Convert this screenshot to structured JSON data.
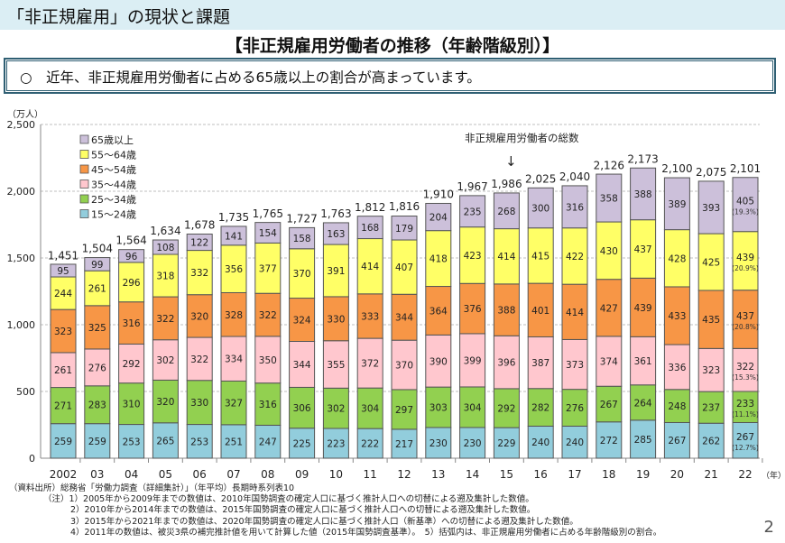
{
  "header": {
    "title": "「非正規雇用」の現状と課題"
  },
  "subtitle": "【非正規雇用労働者の推移（年齢階級別）】",
  "message": "○　近年、非正規雇用労働者に占める65歳以上の割合が高まっています。",
  "chart_data": {
    "type": "bar",
    "stacked": true,
    "ylabel": "（万人）",
    "xlabel": "（年）",
    "ylim": [
      0,
      2500
    ],
    "yticks": [
      "0",
      "500",
      "1,000",
      "1,500",
      "2,000",
      "2,500"
    ],
    "grid": true,
    "legend": "top-left",
    "annotation": "非正規雇用労働者の総数",
    "categories": [
      "2002",
      "03",
      "04",
      "05",
      "06",
      "07",
      "08",
      "09",
      "10",
      "11",
      "12",
      "13",
      "14",
      "15",
      "16",
      "17",
      "18",
      "19",
      "20",
      "21",
      "22"
    ],
    "totals": [
      1451,
      1504,
      1564,
      1634,
      1678,
      1735,
      1765,
      1727,
      1763,
      1812,
      1816,
      1910,
      1967,
      1986,
      2025,
      2040,
      2126,
      2173,
      2100,
      2075,
      2101
    ],
    "series": [
      {
        "name": "15～24歳",
        "color": "#92cddc",
        "values": [
          259,
          259,
          253,
          265,
          253,
          251,
          247,
          225,
          223,
          222,
          217,
          230,
          230,
          229,
          240,
          240,
          272,
          285,
          267,
          262,
          267
        ],
        "share_2022": "(12.7%)"
      },
      {
        "name": "25～34歳",
        "color": "#92d050",
        "values": [
          271,
          283,
          310,
          320,
          330,
          327,
          316,
          306,
          302,
          304,
          297,
          303,
          304,
          292,
          282,
          276,
          267,
          264,
          248,
          237,
          233
        ],
        "share_2022": "(11.1%)"
      },
      {
        "name": "35～44歳",
        "color": "#ffc7ce",
        "values": [
          261,
          276,
          292,
          302,
          322,
          334,
          350,
          344,
          355,
          372,
          370,
          390,
          399,
          396,
          387,
          373,
          374,
          361,
          336,
          323,
          322
        ],
        "share_2022": "(15.3%)"
      },
      {
        "name": "45～54歳",
        "color": "#f79646",
        "values": [
          323,
          325,
          316,
          322,
          320,
          328,
          322,
          324,
          330,
          333,
          344,
          364,
          376,
          388,
          401,
          414,
          427,
          439,
          433,
          435,
          437
        ],
        "share_2022": "(20.8%)"
      },
      {
        "name": "55～64歳",
        "color": "#ffff66",
        "values": [
          244,
          261,
          296,
          318,
          332,
          356,
          377,
          370,
          391,
          414,
          407,
          418,
          423,
          414,
          415,
          422,
          430,
          437,
          428,
          425,
          439
        ],
        "share_2022": "(20.9%)"
      },
      {
        "name": "65歳以上",
        "color": "#ccc0da",
        "values": [
          95,
          99,
          96,
          108,
          122,
          141,
          154,
          158,
          163,
          168,
          179,
          204,
          235,
          268,
          300,
          316,
          358,
          388,
          389,
          393,
          405
        ],
        "share_2022": "(19.3%)"
      }
    ]
  },
  "source": "（資料出所）総務省「労働力調査（詳細集計）」（年平均）長期時系列表10",
  "notes": [
    "（注）1）2005年から2009年までの数値は、2010年国勢調査の確定人口に基づく推計人口への切替による遡及集計した数値。",
    "2）2010年から2014年までの数値は、2015年国勢調査の確定人口に基づく推計人口への切替による遡及集計した数値。",
    "3）2015年から2021年までの数値は、2020年国勢調査の確定人口に基づく推計人口（新基準）への切替による遡及集計した数値。",
    "4）2011年の数値は、被災3県の補完推計値を用いて計算した値（2015年国勢調査基準）。　5）括弧内は、非正規雇用労働者に占める年齢階級別の割合。"
  ],
  "page_number": "2"
}
